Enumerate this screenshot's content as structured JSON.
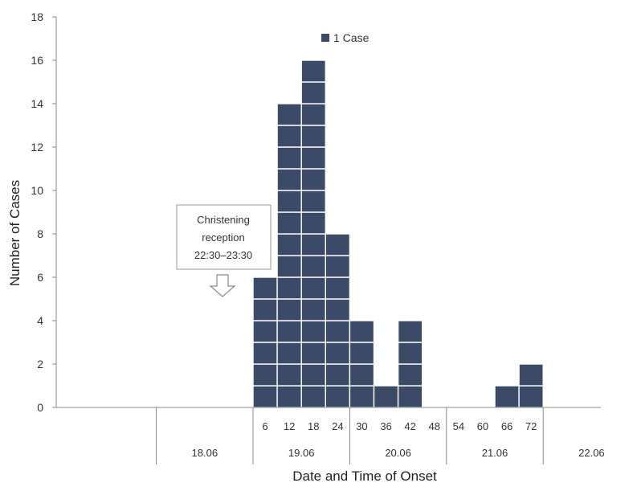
{
  "chart_data": {
    "type": "bar",
    "xlabel": "Date and Time of Onset",
    "ylabel": "Number of Cases",
    "ylim": [
      0,
      18
    ],
    "y_ticks": [
      0,
      2,
      4,
      6,
      8,
      10,
      12,
      14,
      16,
      18
    ],
    "categories": [
      "6",
      "12",
      "18",
      "24",
      "30",
      "36",
      "42",
      "48",
      "54",
      "60",
      "66",
      "72"
    ],
    "values": [
      6,
      14,
      16,
      8,
      4,
      1,
      4,
      0,
      0,
      0,
      1,
      2
    ],
    "dates": [
      "18.06",
      "19.06",
      "20.06",
      "21.06",
      "22.06"
    ],
    "legend": {
      "label": "1 Case",
      "position": "top-center"
    },
    "annotation": {
      "lines": [
        "Christening",
        "reception",
        "22:30–23:30"
      ]
    },
    "grid": false,
    "colors": {
      "bar": "#3b4a67",
      "cell_border": "#ffffff",
      "axis": "#888888"
    }
  }
}
